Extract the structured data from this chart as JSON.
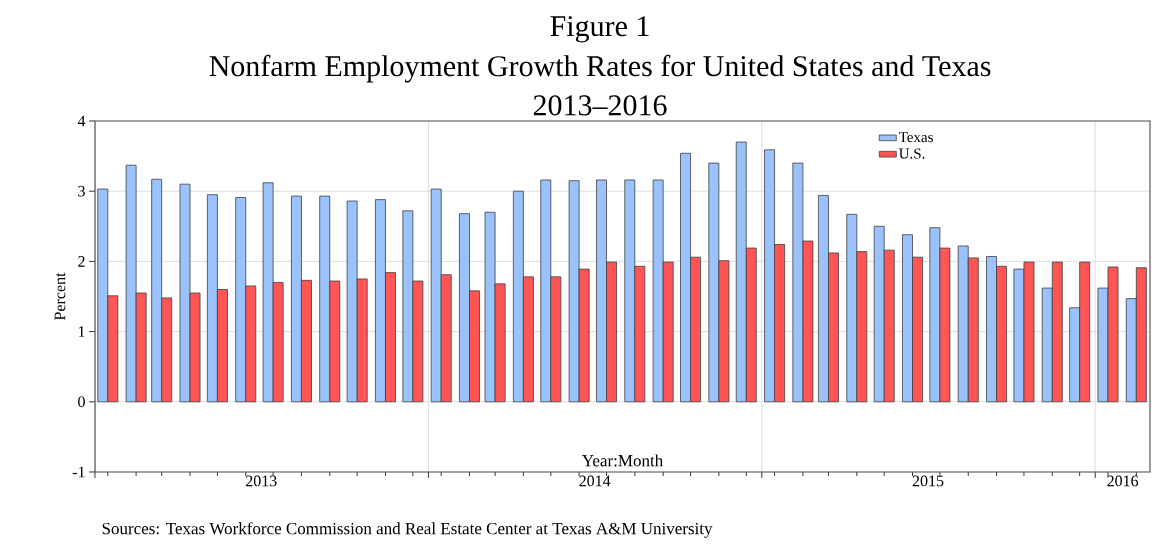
{
  "chart_data": {
    "type": "bar",
    "title": "Nonfarm Employment Growth Rates for United States and Texas",
    "subtitle": "2013–2016",
    "xlabel": "Year:Month",
    "ylabel": "Percent",
    "annotations": [
      "Figure 1",
      "Sources: Texas Workforce Commission and Real Estate Center at Texas A&M University"
    ],
    "x": [
      "2013-01-15",
      "2013-02-15",
      "2013-03-15",
      "2013-04-15",
      "2013-05-15",
      "2013-06-15",
      "2013-07-15",
      "2013-08-15",
      "2013-09-15",
      "2013-10-15",
      "2013-11-15",
      "2013-12-15",
      "2014-01-15",
      "2014-02-15",
      "2014-03-15",
      "2014-04-15",
      "2014-05-15",
      "2014-06-15",
      "2014-07-15",
      "2014-08-15",
      "2014-09-15",
      "2014-10-15",
      "2014-11-15",
      "2014-12-15",
      "2015-01-15",
      "2015-02-15",
      "2015-03-15",
      "2015-04-15",
      "2015-05-15",
      "2015-06-15",
      "2015-07-15",
      "2015-08-15",
      "2015-09-15",
      "2015-10-15",
      "2015-11-15",
      "2015-12-15",
      "2016-01-15",
      "2016-02-15"
    ],
    "series": [
      {
        "name": "Texas",
        "color": "#99c2ff",
        "values": [
          3.03,
          3.37,
          3.17,
          3.1,
          2.95,
          2.91,
          3.12,
          2.93,
          2.93,
          2.86,
          2.88,
          2.72,
          3.03,
          2.68,
          2.7,
          3.0,
          3.16,
          3.15,
          3.16,
          3.16,
          3.16,
          3.54,
          3.4,
          3.7,
          3.59,
          3.4,
          2.94,
          2.67,
          2.5,
          2.38,
          2.48,
          2.22,
          2.07,
          1.89,
          1.62,
          1.34,
          1.62,
          1.47
        ]
      },
      {
        "name": "U.S.",
        "color": "#ff5555",
        "values": [
          1.51,
          1.55,
          1.48,
          1.55,
          1.6,
          1.65,
          1.7,
          1.73,
          1.72,
          1.75,
          1.84,
          1.72,
          1.81,
          1.58,
          1.68,
          1.78,
          1.78,
          1.89,
          1.99,
          1.93,
          1.99,
          2.06,
          2.01,
          2.19,
          2.24,
          2.29,
          2.12,
          2.14,
          2.16,
          2.06,
          2.19,
          2.05,
          1.93,
          1.99,
          1.99,
          1.99,
          1.92,
          1.91
        ]
      }
    ],
    "xlim": [
      "2013-01-01",
      "2016-03-01"
    ],
    "xticks": [
      {
        "value": "2013-01-01",
        "label": null
      },
      {
        "value": "2013-07-02",
        "label": "2013"
      },
      {
        "value": "2014-01-01",
        "label": null
      },
      {
        "value": "2014-07-02",
        "label": "2014"
      },
      {
        "value": "2015-01-01",
        "label": null
      },
      {
        "value": "2015-07-02",
        "label": "2015"
      },
      {
        "value": "2016-01-01",
        "label": null
      },
      {
        "value": "2016-01-31",
        "label": "2016"
      }
    ],
    "ylim": [
      -1,
      4
    ],
    "yticks": [
      -1,
      0,
      1,
      2,
      3,
      4
    ],
    "grid": true,
    "legend": "top right"
  }
}
